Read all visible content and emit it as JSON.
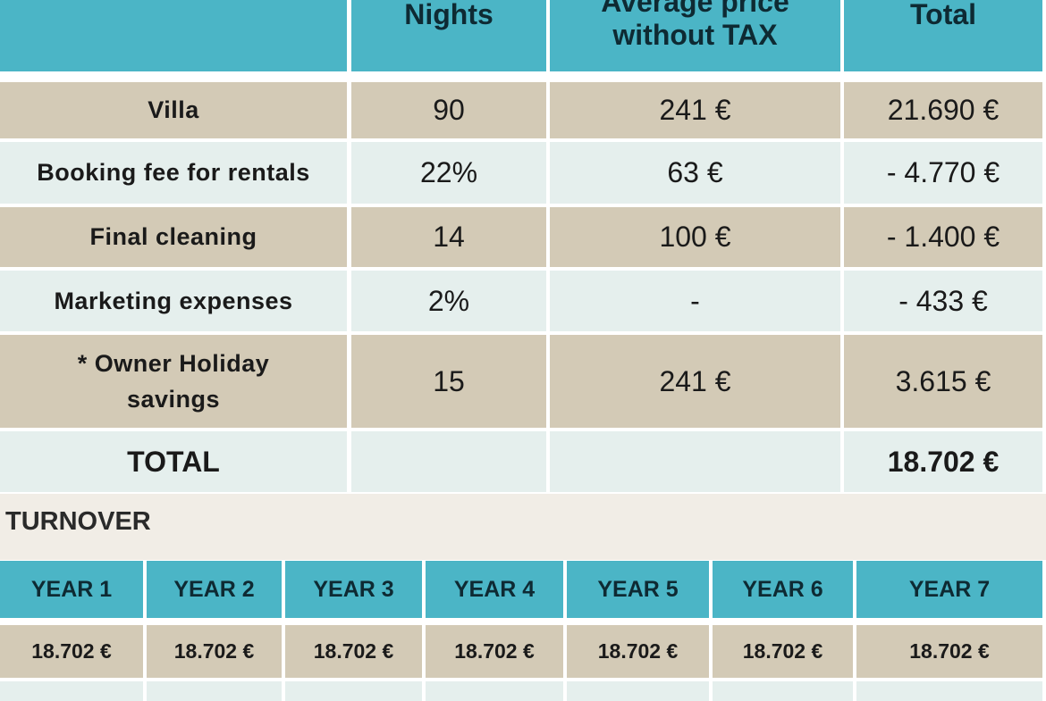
{
  "main_table": {
    "headers": {
      "nights": "Nights",
      "avg_price_line1": "Average price",
      "avg_price_line2": "without TAX",
      "total": "Total"
    },
    "rows": [
      {
        "label": "Villa",
        "nights": "90",
        "price": "241 €",
        "total": "21.690 €"
      },
      {
        "label": "Booking fee for rentals",
        "nights": "22%",
        "price": "63 €",
        "total": "- 4.770 €"
      },
      {
        "label": "Final cleaning",
        "nights": "14",
        "price": "100 €",
        "total": "- 1.400 €"
      },
      {
        "label": "Marketing expenses",
        "nights": "2%",
        "price": "-",
        "total": "- 433 €"
      },
      {
        "label_line1": "* Owner Holiday",
        "label_line2": "savings",
        "nights": "15",
        "price": "241 €",
        "total": "3.615 €"
      }
    ],
    "grand_total": {
      "label": "TOTAL",
      "total": "18.702 €"
    }
  },
  "turnover": {
    "title": "TURNOVER",
    "years": [
      "YEAR 1",
      "YEAR 2",
      "YEAR 3",
      "YEAR 4",
      "YEAR 5",
      "YEAR 6",
      "YEAR 7"
    ],
    "values": [
      "18.702 €",
      "18.702 €",
      "18.702 €",
      "18.702 €",
      "18.702 €",
      "18.702 €",
      "18.702 €"
    ]
  },
  "colors": {
    "header_teal": "#4bb5c6",
    "row_beige": "#d3cab6",
    "row_pale": "#e5efed",
    "band": "#f1ede6"
  }
}
